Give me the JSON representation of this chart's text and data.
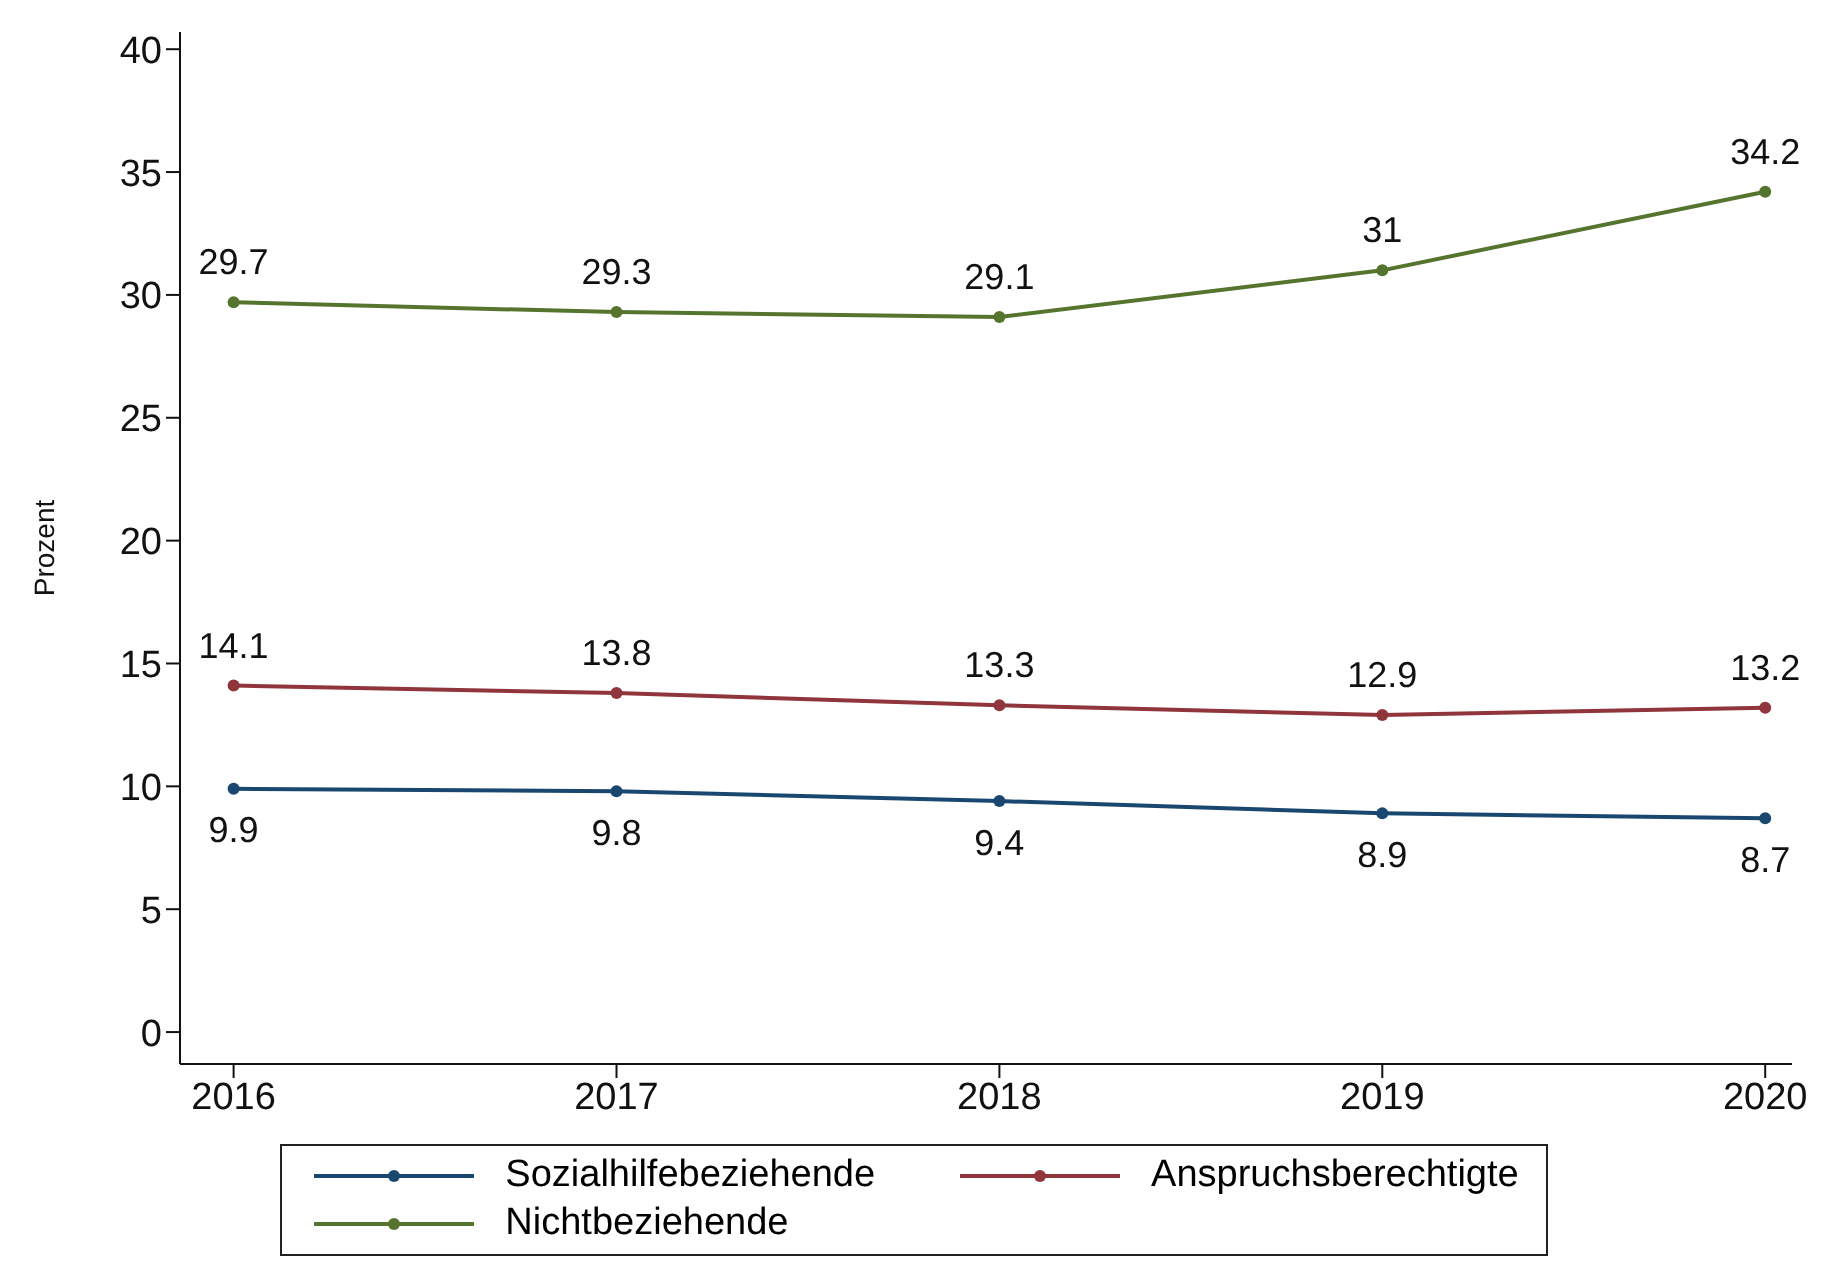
{
  "chart_data": {
    "type": "line",
    "ylabel": "Prozent",
    "x": [
      2016,
      2017,
      2018,
      2019,
      2020
    ],
    "xlim": [
      2015.86,
      2020.07
    ],
    "xticks": [
      2016,
      2017,
      2018,
      2019,
      2020
    ],
    "ylim": [
      -1.3,
      40.7
    ],
    "yticks": [
      0,
      5,
      10,
      15,
      20,
      25,
      30,
      35,
      40
    ],
    "series": [
      {
        "name": "Sozialhilfebeziehende",
        "color": "#1a476f",
        "values": [
          9.9,
          9.8,
          9.4,
          8.9,
          8.7
        ]
      },
      {
        "name": "Anspruchsberechtigte",
        "color": "#90353b",
        "values": [
          14.1,
          13.8,
          13.3,
          12.9,
          13.2
        ]
      },
      {
        "name": "Nichtbeziehende",
        "color": "#55752f",
        "values": [
          29.7,
          29.3,
          29.1,
          31,
          34.2
        ]
      }
    ],
    "data_labels": true,
    "grid": false,
    "legend": "bottom",
    "marker": "circle",
    "line_style": "solid"
  }
}
